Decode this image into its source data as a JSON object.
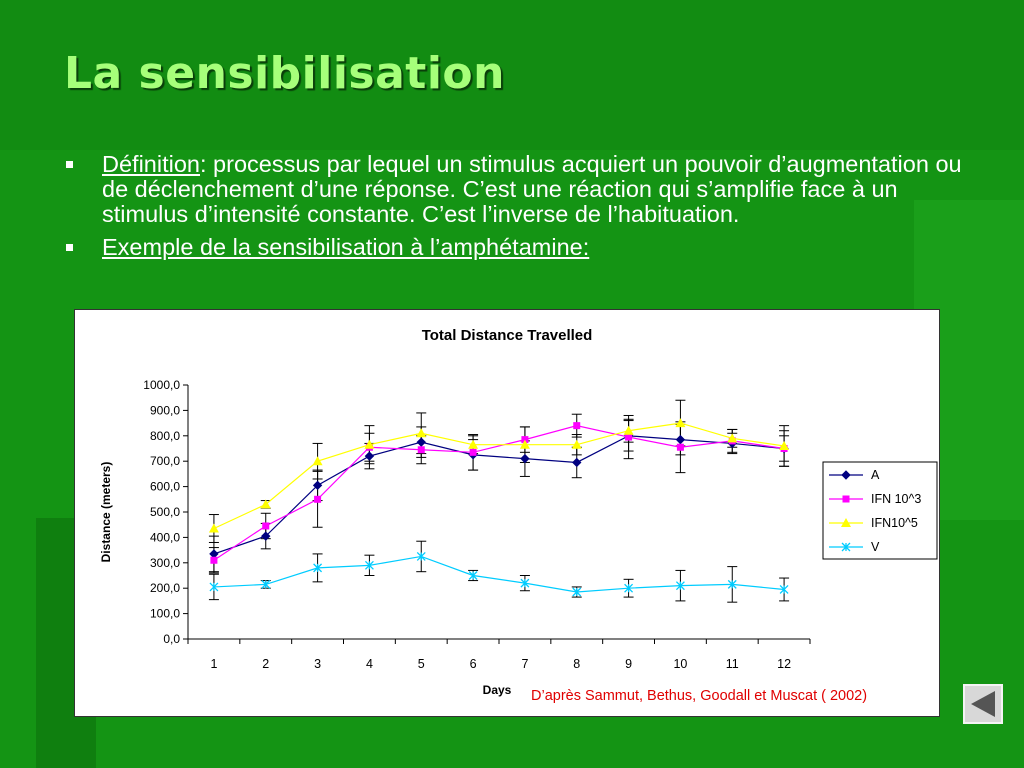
{
  "slide": {
    "title": "La sensibilisation",
    "bullet1_term": "Définition",
    "bullet1_text": ": processus par lequel un stimulus acquiert un pouvoir d’augmentation ou de déclenchement d’une réponse. C’est une réaction qui s’amplifie face à un stimulus d’intensité constante. C’est l’inverse de l’habituation.",
    "bullet2": "Exemple de la sensibilisation à l’amphétamine:",
    "source": "D’après Sammut, Bethus, Goodall et Muscat ( 2002)",
    "nav_icon": "back-arrow-icon"
  },
  "chart_data": {
    "type": "line",
    "title": "Total Distance Travelled",
    "xlabel": "Days",
    "ylabel": "Distance (meters)",
    "x": [
      "1",
      "2",
      "3",
      "4",
      "5",
      "6",
      "7",
      "8",
      "9",
      "10",
      "11",
      "12"
    ],
    "ylim": [
      0,
      1000
    ],
    "yticks": [
      "0,0",
      "100,0",
      "200,0",
      "300,0",
      "400,0",
      "500,0",
      "600,0",
      "700,0",
      "800,0",
      "900,0",
      "1000,0"
    ],
    "legend_position": "right",
    "series": [
      {
        "name": "A",
        "color": "#000080",
        "marker": "diamond",
        "values": [
          335,
          405,
          605,
          720,
          775,
          725,
          710,
          695,
          800,
          785,
          770,
          750
        ],
        "error": [
          70,
          50,
          60,
          50,
          60,
          60,
          70,
          60,
          60,
          60,
          40,
          70
        ]
      },
      {
        "name": "IFN 10^3",
        "color": "#ff00ff",
        "marker": "square",
        "values": [
          310,
          445,
          550,
          755,
          745,
          735,
          785,
          840,
          795,
          755,
          780,
          750
        ],
        "error": [
          50,
          50,
          110,
          55,
          55,
          70,
          50,
          45,
          85,
          100,
          45,
          50
        ]
      },
      {
        "name": "IFN10^5",
        "color": "#ffff00",
        "marker": "triangle",
        "values": [
          435,
          530,
          700,
          765,
          810,
          765,
          765,
          765,
          820,
          850,
          790,
          760
        ],
        "error": [
          55,
          15,
          70,
          75,
          80,
          35,
          70,
          40,
          45,
          90,
          35,
          80
        ]
      },
      {
        "name": "V",
        "color": "#00ccff",
        "marker": "x",
        "values": [
          205,
          215,
          280,
          290,
          325,
          250,
          220,
          185,
          200,
          210,
          215,
          195
        ],
        "error": [
          50,
          15,
          55,
          40,
          60,
          20,
          30,
          20,
          35,
          60,
          70,
          45
        ]
      }
    ]
  }
}
